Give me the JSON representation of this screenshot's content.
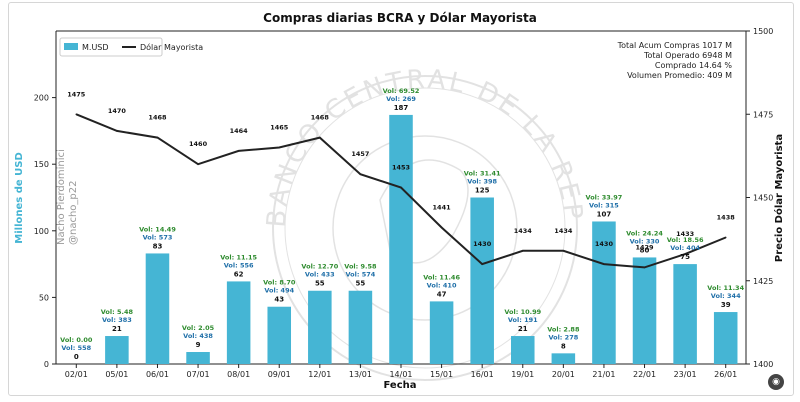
{
  "chart_data": {
    "type": "bar+line",
    "title": "Compras diarias BCRA y Dólar Mayorista",
    "xlabel": "Fecha",
    "ylabel": "Millones de USD",
    "y2label": "Precio Dólar Mayorista",
    "ylim": [
      0,
      250
    ],
    "y2lim": [
      1400,
      1500
    ],
    "yticks": [
      0,
      50,
      100,
      150,
      200
    ],
    "y2ticks": [
      1400,
      1425,
      1450,
      1475,
      1500
    ],
    "categories": [
      "02/01",
      "05/01",
      "06/01",
      "07/01",
      "08/01",
      "09/01",
      "12/01",
      "13/01",
      "14/01",
      "15/01",
      "16/01",
      "19/01",
      "20/01",
      "21/01",
      "22/01",
      "23/01",
      "26/01"
    ],
    "bar_series": {
      "name": "M.USD",
      "values": [
        0,
        21,
        83,
        9,
        62,
        43,
        55,
        55,
        187,
        47,
        125,
        21,
        8,
        107,
        80,
        75,
        39
      ],
      "vol_labels": [
        "Vol: 0.00",
        "Vol: 5.48",
        "Vol: 14.49",
        "Vol: 2.05",
        "Vol: 11.15",
        "Vol: 8.70",
        "Vol: 12.70",
        "Vol: 9.58",
        "Vol: 69.52",
        "Vol: 11.46",
        "Vol: 31.41",
        "Vol: 10.99",
        "Vol: 2.88",
        "Vol: 33.97",
        "Vol: 24.24",
        "Vol: 18.56",
        "Vol: 11.34"
      ],
      "vol2_labels": [
        "Vol: 558",
        "Vol: 383",
        "Vol: 573",
        "Vol: 438",
        "Vol: 556",
        "Vol: 494",
        "Vol: 433",
        "Vol: 574",
        "Vol: 269",
        "Vol: 410",
        "Vol: 398",
        "Vol: 191",
        "Vol: 278",
        "Vol: 315",
        "Vol: 330",
        "Vol: 404",
        "Vol: 344"
      ]
    },
    "line_series": {
      "name": "Dólar Mayorista",
      "values": [
        1475,
        1470,
        1468,
        1460,
        1464,
        1465,
        1468,
        1457,
        1453,
        1441,
        1430,
        1434,
        1434,
        1430,
        1429,
        1433,
        1438
      ]
    },
    "legend_position": "top-left",
    "stats": [
      "Total Acum Compras 1017 M",
      "Total Operado 6948 M",
      "Comprado 14.64 %",
      "Volumen Promedio: 409 M"
    ],
    "watermark": [
      "Nacho Pierdominici",
      "@nacho_p22"
    ],
    "seal_text": "BANCO CENTRAL DE LA REPUBLICA ARGENTINA",
    "colors": {
      "bar": "#45b5d4",
      "line": "#222222",
      "ylabel": "#45b5d4",
      "vol_green": "#2e8b2e",
      "vol_blue": "#1f6fa8"
    }
  },
  "ui": {
    "corner_icon": "camera-icon"
  }
}
